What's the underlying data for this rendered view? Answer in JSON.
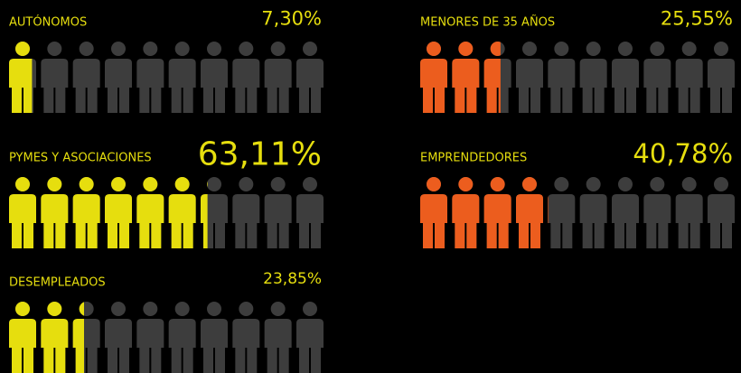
{
  "chart_data": [
    {
      "type": "pictogram",
      "title": "AUTÓNOMOS",
      "values": [
        7.3
      ],
      "value_labels": [
        "7,30%"
      ],
      "color": "#e6de0e",
      "xlim": [
        0,
        100
      ]
    },
    {
      "type": "pictogram",
      "title": "MENORES DE 35 AÑOS",
      "values": [
        25.55
      ],
      "value_labels": [
        "25,55%"
      ],
      "color": "#ec5d1e",
      "xlim": [
        0,
        100
      ]
    },
    {
      "type": "pictogram",
      "title": "PYMES Y ASOCIACIONES",
      "values": [
        63.11
      ],
      "value_labels": [
        "63,11%"
      ],
      "color": "#e6de0e",
      "xlim": [
        0,
        100
      ]
    },
    {
      "type": "pictogram",
      "title": "EMPRENDEDORES",
      "values": [
        40.78
      ],
      "value_labels": [
        "40,78%"
      ],
      "color": "#ec5d1e",
      "xlim": [
        0,
        100
      ]
    },
    {
      "type": "pictogram",
      "title": "DESEMPLEADOS",
      "values": [
        23.85
      ],
      "value_labels": [
        "23,85%"
      ],
      "color": "#e6de0e",
      "xlim": [
        0,
        100
      ]
    }
  ]
}
